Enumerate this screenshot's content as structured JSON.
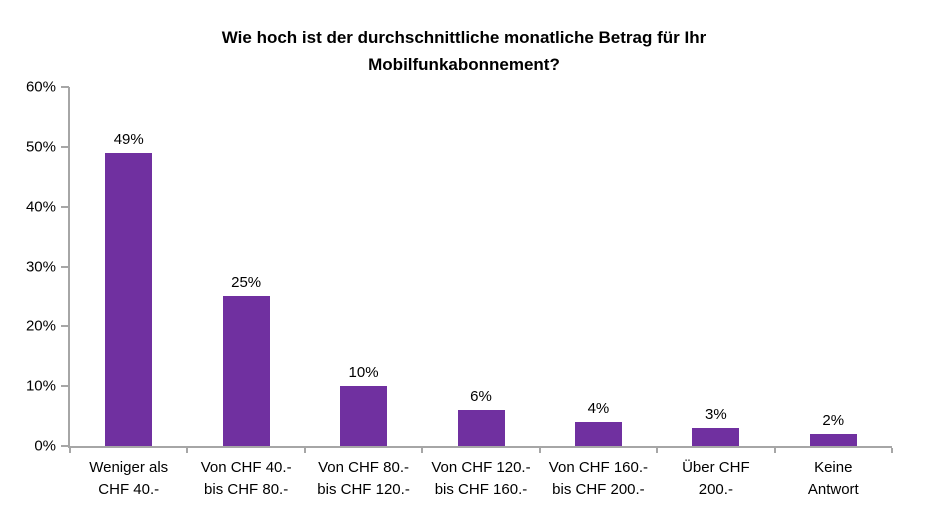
{
  "header": {
    "title_lines": [
      "Wie hoch ist der durchschnittliche monatliche Betrag für Ihr",
      "Mobilfunkabonnement?"
    ]
  },
  "chart_data": {
    "type": "bar",
    "title": "Wie hoch ist der durchschnittliche monatliche Betrag für Ihr Mobilfunkabonnement?",
    "categories": [
      "Weniger als CHF 40.-",
      "Von CHF 40.- bis CHF 80.-",
      "Von CHF 80.- bis CHF 120.-",
      "Von CHF 120.- bis CHF 160.-",
      "Von CHF 160.- bis CHF 200.-",
      "Über CHF 200.-",
      "Keine Antwort"
    ],
    "category_label_lines": [
      [
        "Weniger als",
        "CHF 40.-"
      ],
      [
        "Von CHF 40.-",
        "bis CHF 80.-"
      ],
      [
        "Von CHF 80.-",
        "bis CHF 120.-"
      ],
      [
        "Von CHF 120.-",
        "bis CHF 160.-"
      ],
      [
        "Von CHF 160.-",
        "bis CHF 200.-"
      ],
      [
        "Über CHF",
        "200.-"
      ],
      [
        "Keine",
        "Antwort"
      ]
    ],
    "values": [
      49,
      25,
      10,
      6,
      4,
      3,
      2
    ],
    "value_labels": [
      "49%",
      "25%",
      "10%",
      "6%",
      "4%",
      "3%",
      "2%"
    ],
    "y_ticks": [
      0,
      10,
      20,
      30,
      40,
      50,
      60
    ],
    "y_tick_labels": [
      "0%",
      "10%",
      "20%",
      "30%",
      "40%",
      "50%",
      "60%"
    ],
    "ylim": [
      0,
      60
    ],
    "xlabel": "",
    "ylabel": "",
    "grid": false,
    "legend": "none",
    "bar_color": "#7030A0",
    "axis_color": "#A6A6A6",
    "text_color": "#000000",
    "background_color": "#FFFFFF"
  }
}
